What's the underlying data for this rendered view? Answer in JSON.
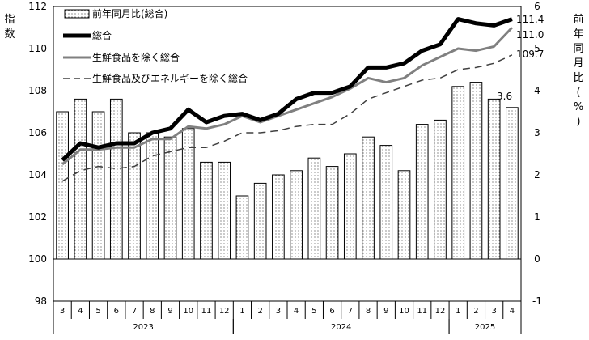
{
  "chart_data": {
    "type": "bar+line",
    "left_axis": {
      "title": "指数",
      "ticks": [
        "112",
        "110",
        "108",
        "106",
        "104",
        "102",
        "100",
        "98"
      ],
      "ylim": [
        98,
        112
      ]
    },
    "right_axis": {
      "title": "前年同月比(%)",
      "ticks": [
        "6",
        "5",
        "4",
        "3",
        "2",
        "1",
        "0",
        "-1"
      ],
      "ylim": [
        -1,
        6
      ]
    },
    "months": [
      "3",
      "4",
      "5",
      "6",
      "7",
      "8",
      "9",
      "10",
      "11",
      "12",
      "1",
      "2",
      "3",
      "4",
      "5",
      "6",
      "7",
      "8",
      "9",
      "10",
      "11",
      "12",
      "1",
      "2",
      "3",
      "4"
    ],
    "years": [
      {
        "label": "2023",
        "start": 0,
        "end": 10
      },
      {
        "label": "2024",
        "start": 10,
        "end": 22
      },
      {
        "label": "2025",
        "start": 22,
        "end": 26
      }
    ],
    "legend": {
      "bar": "前年同月比(総合)",
      "total": "総合",
      "ex_fresh": "生鮮食品を除く総合",
      "ex_fresh_energy": "生鮮食品及びエネルギーを除く総合"
    },
    "bars": [
      3.5,
      3.8,
      3.5,
      3.8,
      3.0,
      3.0,
      2.9,
      3.1,
      2.3,
      2.3,
      1.5,
      1.8,
      2.0,
      2.1,
      2.4,
      2.2,
      2.5,
      2.9,
      2.7,
      2.1,
      3.2,
      3.3,
      4.1,
      4.2,
      3.8,
      3.6
    ],
    "series": {
      "total": [
        104.7,
        105.5,
        105.3,
        105.5,
        105.5,
        106.0,
        106.2,
        107.1,
        106.5,
        106.8,
        106.9,
        106.6,
        106.9,
        107.6,
        107.9,
        107.9,
        108.2,
        109.1,
        109.1,
        109.3,
        109.9,
        110.2,
        111.4,
        111.2,
        111.1,
        111.4
      ],
      "ex_fresh": [
        104.5,
        105.2,
        105.2,
        105.3,
        105.3,
        105.7,
        105.7,
        106.3,
        106.2,
        106.4,
        106.8,
        106.5,
        106.8,
        107.1,
        107.4,
        107.7,
        108.1,
        108.6,
        108.4,
        108.6,
        109.2,
        109.6,
        110.0,
        109.9,
        110.1,
        111.0
      ],
      "ex_fresh_energy": [
        103.7,
        104.2,
        104.4,
        104.3,
        104.4,
        104.9,
        105.1,
        105.3,
        105.3,
        105.6,
        106.0,
        106.0,
        106.1,
        106.3,
        106.4,
        106.4,
        106.9,
        107.6,
        107.9,
        108.2,
        108.5,
        108.6,
        109.0,
        109.1,
        109.3,
        109.7
      ]
    },
    "end_labels": {
      "total": "111.4",
      "ex_fresh": "111.0",
      "ex_fresh_energy": "109.7",
      "bar": "3.6"
    },
    "colors": {
      "total": "#000000",
      "ex_fresh": "#808080",
      "ex_fresh_energy": "#404040",
      "bar_fill": "#ffffff",
      "bar_dots": "#000000"
    }
  }
}
